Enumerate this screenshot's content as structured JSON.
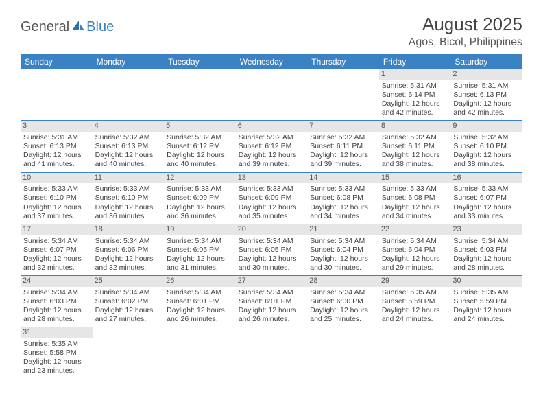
{
  "brand": {
    "general": "General",
    "blue": "Blue"
  },
  "title": "August 2025",
  "location": "Agos, Bicol, Philippines",
  "colors": {
    "header_bg": "#3b82c4",
    "header_text": "#ffffff",
    "daynum_bg": "#e6e6e6",
    "border": "#3b82c4"
  },
  "days_of_week": [
    "Sunday",
    "Monday",
    "Tuesday",
    "Wednesday",
    "Thursday",
    "Friday",
    "Saturday"
  ],
  "weeks": [
    [
      null,
      null,
      null,
      null,
      null,
      {
        "n": "1",
        "sunrise": "Sunrise: 5:31 AM",
        "sunset": "Sunset: 6:14 PM",
        "daylight": "Daylight: 12 hours and 42 minutes."
      },
      {
        "n": "2",
        "sunrise": "Sunrise: 5:31 AM",
        "sunset": "Sunset: 6:13 PM",
        "daylight": "Daylight: 12 hours and 42 minutes."
      }
    ],
    [
      {
        "n": "3",
        "sunrise": "Sunrise: 5:31 AM",
        "sunset": "Sunset: 6:13 PM",
        "daylight": "Daylight: 12 hours and 41 minutes."
      },
      {
        "n": "4",
        "sunrise": "Sunrise: 5:32 AM",
        "sunset": "Sunset: 6:13 PM",
        "daylight": "Daylight: 12 hours and 40 minutes."
      },
      {
        "n": "5",
        "sunrise": "Sunrise: 5:32 AM",
        "sunset": "Sunset: 6:12 PM",
        "daylight": "Daylight: 12 hours and 40 minutes."
      },
      {
        "n": "6",
        "sunrise": "Sunrise: 5:32 AM",
        "sunset": "Sunset: 6:12 PM",
        "daylight": "Daylight: 12 hours and 39 minutes."
      },
      {
        "n": "7",
        "sunrise": "Sunrise: 5:32 AM",
        "sunset": "Sunset: 6:11 PM",
        "daylight": "Daylight: 12 hours and 39 minutes."
      },
      {
        "n": "8",
        "sunrise": "Sunrise: 5:32 AM",
        "sunset": "Sunset: 6:11 PM",
        "daylight": "Daylight: 12 hours and 38 minutes."
      },
      {
        "n": "9",
        "sunrise": "Sunrise: 5:32 AM",
        "sunset": "Sunset: 6:10 PM",
        "daylight": "Daylight: 12 hours and 38 minutes."
      }
    ],
    [
      {
        "n": "10",
        "sunrise": "Sunrise: 5:33 AM",
        "sunset": "Sunset: 6:10 PM",
        "daylight": "Daylight: 12 hours and 37 minutes."
      },
      {
        "n": "11",
        "sunrise": "Sunrise: 5:33 AM",
        "sunset": "Sunset: 6:10 PM",
        "daylight": "Daylight: 12 hours and 36 minutes."
      },
      {
        "n": "12",
        "sunrise": "Sunrise: 5:33 AM",
        "sunset": "Sunset: 6:09 PM",
        "daylight": "Daylight: 12 hours and 36 minutes."
      },
      {
        "n": "13",
        "sunrise": "Sunrise: 5:33 AM",
        "sunset": "Sunset: 6:09 PM",
        "daylight": "Daylight: 12 hours and 35 minutes."
      },
      {
        "n": "14",
        "sunrise": "Sunrise: 5:33 AM",
        "sunset": "Sunset: 6:08 PM",
        "daylight": "Daylight: 12 hours and 34 minutes."
      },
      {
        "n": "15",
        "sunrise": "Sunrise: 5:33 AM",
        "sunset": "Sunset: 6:08 PM",
        "daylight": "Daylight: 12 hours and 34 minutes."
      },
      {
        "n": "16",
        "sunrise": "Sunrise: 5:33 AM",
        "sunset": "Sunset: 6:07 PM",
        "daylight": "Daylight: 12 hours and 33 minutes."
      }
    ],
    [
      {
        "n": "17",
        "sunrise": "Sunrise: 5:34 AM",
        "sunset": "Sunset: 6:07 PM",
        "daylight": "Daylight: 12 hours and 32 minutes."
      },
      {
        "n": "18",
        "sunrise": "Sunrise: 5:34 AM",
        "sunset": "Sunset: 6:06 PM",
        "daylight": "Daylight: 12 hours and 32 minutes."
      },
      {
        "n": "19",
        "sunrise": "Sunrise: 5:34 AM",
        "sunset": "Sunset: 6:05 PM",
        "daylight": "Daylight: 12 hours and 31 minutes."
      },
      {
        "n": "20",
        "sunrise": "Sunrise: 5:34 AM",
        "sunset": "Sunset: 6:05 PM",
        "daylight": "Daylight: 12 hours and 30 minutes."
      },
      {
        "n": "21",
        "sunrise": "Sunrise: 5:34 AM",
        "sunset": "Sunset: 6:04 PM",
        "daylight": "Daylight: 12 hours and 30 minutes."
      },
      {
        "n": "22",
        "sunrise": "Sunrise: 5:34 AM",
        "sunset": "Sunset: 6:04 PM",
        "daylight": "Daylight: 12 hours and 29 minutes."
      },
      {
        "n": "23",
        "sunrise": "Sunrise: 5:34 AM",
        "sunset": "Sunset: 6:03 PM",
        "daylight": "Daylight: 12 hours and 28 minutes."
      }
    ],
    [
      {
        "n": "24",
        "sunrise": "Sunrise: 5:34 AM",
        "sunset": "Sunset: 6:03 PM",
        "daylight": "Daylight: 12 hours and 28 minutes."
      },
      {
        "n": "25",
        "sunrise": "Sunrise: 5:34 AM",
        "sunset": "Sunset: 6:02 PM",
        "daylight": "Daylight: 12 hours and 27 minutes."
      },
      {
        "n": "26",
        "sunrise": "Sunrise: 5:34 AM",
        "sunset": "Sunset: 6:01 PM",
        "daylight": "Daylight: 12 hours and 26 minutes."
      },
      {
        "n": "27",
        "sunrise": "Sunrise: 5:34 AM",
        "sunset": "Sunset: 6:01 PM",
        "daylight": "Daylight: 12 hours and 26 minutes."
      },
      {
        "n": "28",
        "sunrise": "Sunrise: 5:34 AM",
        "sunset": "Sunset: 6:00 PM",
        "daylight": "Daylight: 12 hours and 25 minutes."
      },
      {
        "n": "29",
        "sunrise": "Sunrise: 5:35 AM",
        "sunset": "Sunset: 5:59 PM",
        "daylight": "Daylight: 12 hours and 24 minutes."
      },
      {
        "n": "30",
        "sunrise": "Sunrise: 5:35 AM",
        "sunset": "Sunset: 5:59 PM",
        "daylight": "Daylight: 12 hours and 24 minutes."
      }
    ],
    [
      {
        "n": "31",
        "sunrise": "Sunrise: 5:35 AM",
        "sunset": "Sunset: 5:58 PM",
        "daylight": "Daylight: 12 hours and 23 minutes."
      },
      null,
      null,
      null,
      null,
      null,
      null
    ]
  ]
}
